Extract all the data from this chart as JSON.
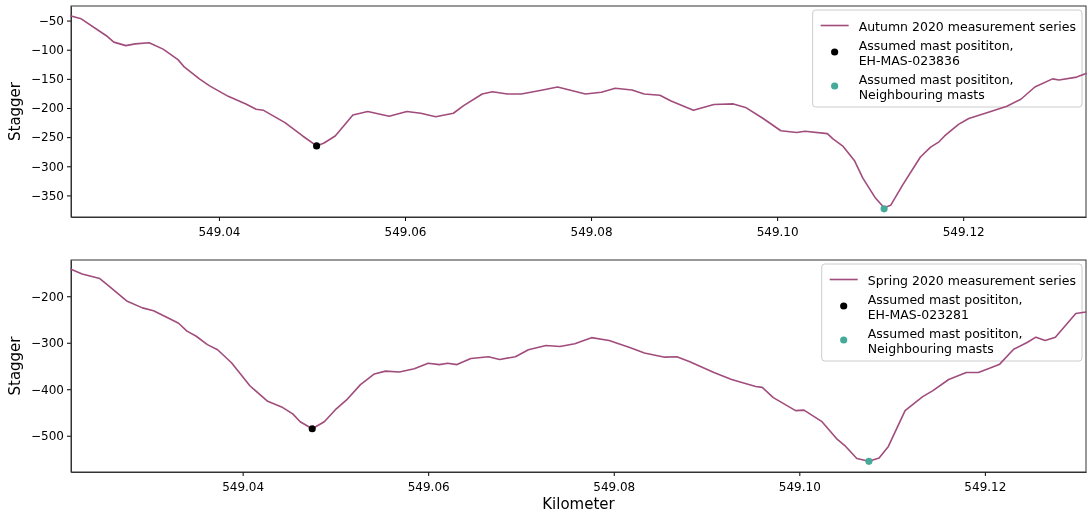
{
  "chart_data": [
    {
      "type": "line",
      "ylabel": "Stagger",
      "xlim": [
        549.0241,
        549.1332
      ],
      "ylim": [
        -387,
        -25
      ],
      "xticks": [
        549.04,
        549.06,
        549.08,
        {
          "value": 549.1,
          "label": "549.10"
        },
        549.12
      ],
      "yticks": [
        -50,
        -100,
        -150,
        -200,
        -250,
        -300,
        -350
      ],
      "legend": "top right",
      "grid": false,
      "series": [
        {
          "type": "line",
          "name": "Autumn 2020 measurement series",
          "color": "#a04c7c",
          "line_style": "solid",
          "marker": "none",
          "x": [
            549.0241,
            549.0252,
            549.0279,
            549.0287,
            549.03,
            549.031,
            549.0325,
            549.034,
            549.0356,
            549.0363,
            549.0379,
            549.039,
            549.041,
            549.0429,
            549.044,
            549.0448,
            549.0471,
            549.049,
            549.0505,
            549.0513,
            549.0525,
            549.0544,
            549.056,
            549.0583,
            549.0602,
            549.0617,
            549.0633,
            549.0652,
            549.0663,
            549.0683,
            549.0694,
            549.071,
            549.0725,
            549.0748,
            549.0764,
            549.0794,
            549.0811,
            549.0826,
            549.0844,
            549.0857,
            549.0874,
            549.0886,
            549.091,
            549.0932,
            549.0953,
            549.0966,
            549.0985,
            549.1004,
            549.1021,
            549.103,
            549.1054,
            549.106,
            549.1071,
            549.1083,
            549.1092,
            549.1105,
            549.1115,
            549.1122,
            549.1135,
            549.1154,
            549.1165,
            549.1174,
            549.118,
            549.1195,
            549.1206,
            549.1228,
            549.1247,
            549.1262,
            549.1277,
            549.1296,
            549.1303,
            549.1322,
            549.1332
          ],
          "values": [
            -42,
            -47,
            -76,
            -87,
            -93,
            -90,
            -88,
            -99,
            -117,
            -130,
            -150,
            -162,
            -180,
            -193,
            -202,
            -204,
            -225,
            -248,
            -265,
            -260,
            -248,
            -212,
            -206,
            -214,
            -206,
            -209,
            -215,
            -209,
            -196,
            -176,
            -172,
            -176,
            -176,
            -169,
            -164,
            -176,
            -173,
            -166,
            -169,
            -176,
            -178,
            -188,
            -204,
            -194,
            -193,
            -199,
            -218,
            -239,
            -242,
            -240,
            -244,
            -253,
            -266,
            -290,
            -320,
            -353,
            -371,
            -367,
            -332,
            -284,
            -267,
            -258,
            -248,
            -228,
            -218,
            -207,
            -197,
            -185,
            -164,
            -150,
            -152,
            -147,
            -141
          ]
        },
        {
          "type": "scatter",
          "name": "Assumed mast posititon,\nEH-MAS-023836",
          "color": "#000000",
          "marker": "circle",
          "x": [
            549.0505
          ],
          "values": [
            -265
          ]
        },
        {
          "type": "scatter",
          "name": "Assumed mast posititon,\nNeighbouring masts",
          "color": "#45ab98",
          "marker": "circle",
          "x": [
            549.1115
          ],
          "values": [
            -373
          ]
        }
      ]
    },
    {
      "type": "line",
      "ylabel": "Stagger",
      "xlabel": "Kilometer",
      "xlim": [
        549.0215,
        549.1309
      ],
      "ylim": [
        -578,
        -122
      ],
      "xticks": [
        549.04,
        549.06,
        549.08,
        {
          "value": 549.1,
          "label": "549.10"
        },
        549.12
      ],
      "yticks": [
        -200,
        -300,
        -400,
        -500
      ],
      "legend": "top right",
      "grid": false,
      "series": [
        {
          "type": "line",
          "name": "Spring 2020 measurement series",
          "color": "#a04c7c",
          "line_style": "solid",
          "marker": "none",
          "x": [
            549.0215,
            549.0227,
            549.0246,
            549.0254,
            549.0275,
            549.0292,
            549.0304,
            549.0323,
            549.0331,
            549.034,
            549.035,
            549.0362,
            549.0373,
            549.0388,
            549.0408,
            549.0427,
            549.0442,
            549.0454,
            549.0462,
            549.0475,
            549.0488,
            549.05,
            549.0512,
            549.0527,
            549.0542,
            549.0554,
            549.0569,
            549.0585,
            549.06,
            549.0612,
            549.0621,
            549.0631,
            549.0646,
            549.0665,
            549.0677,
            549.0694,
            549.0708,
            549.0727,
            549.0742,
            549.0758,
            549.0776,
            549.0795,
            549.0818,
            549.0833,
            549.0855,
            549.0868,
            549.0882,
            549.0908,
            549.0927,
            549.0953,
            549.096,
            549.0972,
            549.0996,
            549.1005,
            549.1024,
            549.1041,
            549.105,
            549.1062,
            549.1075,
            549.1086,
            549.1096,
            549.1114,
            549.1133,
            549.1144,
            549.1161,
            549.118,
            549.1193,
            549.1205,
            549.1216,
            549.1231,
            549.1246,
            549.1255,
            549.1265,
            549.1276,
            549.1298,
            549.1309
          ],
          "values": [
            -142,
            -152,
            -162,
            -175,
            -210,
            -225,
            -231,
            -250,
            -258,
            -275,
            -286,
            -304,
            -315,
            -343,
            -393,
            -426,
            -438,
            -453,
            -470,
            -485,
            -470,
            -444,
            -423,
            -390,
            -367,
            -361,
            -363,
            -356,
            -344,
            -347,
            -344,
            -347,
            -334,
            -330,
            -336,
            -330,
            -315,
            -306,
            -308,
            -302,
            -289,
            -295,
            -311,
            -322,
            -331,
            -330,
            -341,
            -364,
            -379,
            -394,
            -396,
            -418,
            -446,
            -445,
            -469,
            -508,
            -523,
            -549,
            -555,
            -548,
            -523,
            -446,
            -416,
            -403,
            -379,
            -364,
            -364,
            -355,
            -346,
            -314,
            -299,
            -288,
            -295,
            -288,
            -237,
            -234
          ]
        },
        {
          "type": "scatter",
          "name": "Assumed mast posititon,\nEH-MAS-023281",
          "color": "#000000",
          "marker": "circle",
          "x": [
            549.0475
          ],
          "values": [
            -485
          ]
        },
        {
          "type": "scatter",
          "name": "Assumed mast posititon,\nNeighbouring masts",
          "color": "#45ab98",
          "marker": "circle",
          "x": [
            549.1075
          ],
          "values": [
            -555
          ]
        }
      ]
    }
  ]
}
